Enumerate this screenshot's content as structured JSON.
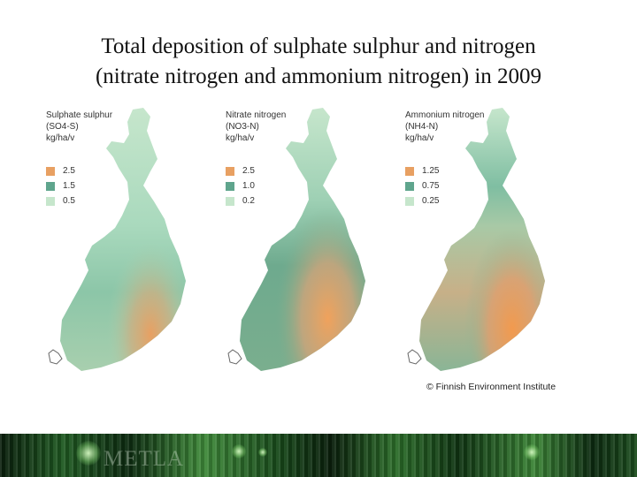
{
  "title": {
    "line1": "Total deposition of sulphate sulphur and nitrogen",
    "line2": "(nitrate nitrogen and ammonium nitrogen) in 2009"
  },
  "colors": {
    "high": "#e8a062",
    "mid": "#5fa58d",
    "low": "#c6e6cc"
  },
  "maps": [
    {
      "legend": {
        "line1": "Sulphate sulphur",
        "line2": "(SO4-S)",
        "line3": "kg/ha/v"
      },
      "items": [
        {
          "label": "2.5",
          "color": "#e8a062"
        },
        {
          "label": "1.5",
          "color": "#5fa58d"
        },
        {
          "label": "0.5",
          "color": "#c6e6cc"
        }
      ]
    },
    {
      "legend": {
        "line1": "Nitrate nitrogen",
        "line2": "(NO3-N)",
        "line3": "kg/ha/v"
      },
      "items": [
        {
          "label": "2.5",
          "color": "#e8a062"
        },
        {
          "label": "1.0",
          "color": "#5fa58d"
        },
        {
          "label": "0.2",
          "color": "#c6e6cc"
        }
      ]
    },
    {
      "legend": {
        "line1": "Ammonium nitrogen",
        "line2": "(NH4-N)",
        "line3": "kg/ha/v"
      },
      "items": [
        {
          "label": "1.25",
          "color": "#e8a062"
        },
        {
          "label": "0.75",
          "color": "#5fa58d"
        },
        {
          "label": "0.25",
          "color": "#c6e6cc"
        }
      ]
    }
  ],
  "copyright": "© Finnish Environment Institute",
  "footer": {
    "logo": "METLA"
  }
}
